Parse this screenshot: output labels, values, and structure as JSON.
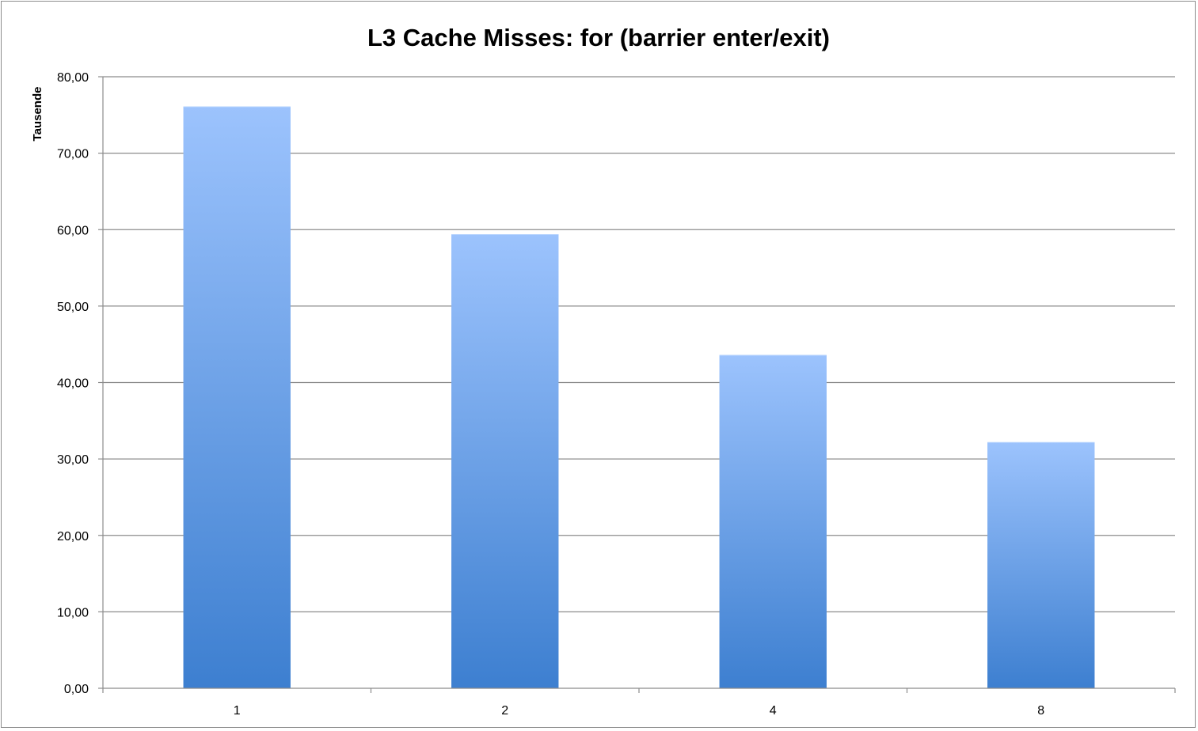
{
  "chart_data": {
    "type": "bar",
    "title": "L3 Cache Misses: for (barrier enter/exit)",
    "xlabel": "",
    "ylabel": "Tausende",
    "categories": [
      "1",
      "2",
      "4",
      "8"
    ],
    "values": [
      76.1,
      59.4,
      43.6,
      32.2
    ],
    "ylim": [
      0,
      80
    ],
    "yticks": [
      "0,00",
      "10,00",
      "20,00",
      "30,00",
      "40,00",
      "50,00",
      "60,00",
      "70,00",
      "80,00"
    ],
    "ytick_values": [
      0,
      10,
      20,
      30,
      40,
      50,
      60,
      70,
      80
    ],
    "grid": true,
    "legend": "none",
    "colors": {
      "bar_top": "#9cc3fd",
      "bar_bottom": "#3d7fd0",
      "grid": "#8c8c8c",
      "axis": "#8c8c8c"
    }
  }
}
